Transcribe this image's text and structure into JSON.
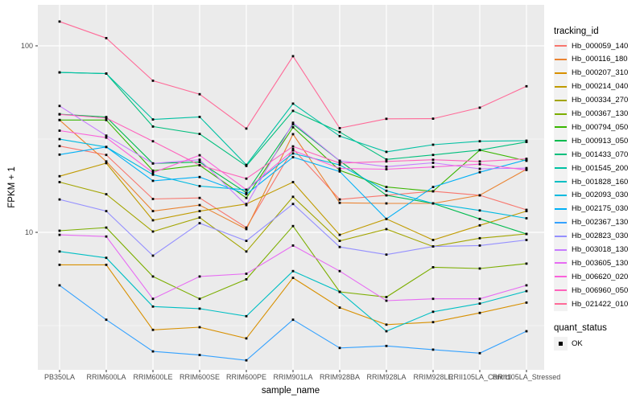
{
  "chart_data": {
    "type": "line",
    "title": "",
    "xlabel": "sample_name",
    "ylabel": "FPKM + 1",
    "yscale": "log10",
    "ylim": [
      1.8,
      170
    ],
    "yticks": [
      100,
      10
    ],
    "ytick_labels": [
      "100",
      "10"
    ],
    "yminor": [
      31.62,
      3.162
    ],
    "grid": "white on gray panel",
    "legend_position": "right",
    "legend_title": "tracking_id",
    "point_marker": "black square",
    "quant_legend": {
      "title": "quant_status",
      "items": [
        {
          "label": "OK"
        }
      ]
    },
    "x": [
      "PB350LA",
      "RRIM600LA",
      "RRIM600LE",
      "RRIM600SE",
      "RRIM600PE",
      "RRIM901LA",
      "RRIM928BA",
      "RRIM928LA",
      "RRIM928LE",
      "RRII105LA_Control",
      "RRII105LA_Stressed"
    ],
    "series": [
      {
        "name": "Hb_000059_140",
        "color": "#F8766D",
        "values": [
          29,
          26,
          15.1,
          15.3,
          10.6,
          28,
          15.0,
          15.8,
          16.6,
          15.8,
          13.2
        ]
      },
      {
        "name": "Hb_000116_180",
        "color": "#EA8331",
        "values": [
          40,
          24,
          13.0,
          14.0,
          10.4,
          33.6,
          14.4,
          14.3,
          14.3,
          15.8,
          21.8
        ]
      },
      {
        "name": "Hb_000207_310",
        "color": "#D89000",
        "values": [
          6.7,
          6.7,
          3.0,
          3.1,
          2.7,
          5.7,
          3.95,
          3.2,
          3.3,
          3.7,
          4.2
        ]
      },
      {
        "name": "Hb_000214_040",
        "color": "#C09B00",
        "values": [
          20,
          23.5,
          11.6,
          13.0,
          14.2,
          18.6,
          9.7,
          11.8,
          9.1,
          10.9,
          13.0
        ]
      },
      {
        "name": "Hb_000334_270",
        "color": "#A3A500",
        "values": [
          18.6,
          16,
          10.1,
          12.0,
          7.9,
          15.5,
          9.0,
          10.4,
          8.4,
          9.3,
          9.8
        ]
      },
      {
        "name": "Hb_000367_130",
        "color": "#7CAE00",
        "values": [
          10.2,
          10.6,
          5.8,
          4.4,
          5.6,
          10.8,
          4.8,
          4.5,
          6.5,
          6.4,
          6.8
        ]
      },
      {
        "name": "Hb_000794_050",
        "color": "#39B600",
        "values": [
          40,
          40,
          21.4,
          22.9,
          15.3,
          36.6,
          21.5,
          17.5,
          16.6,
          27.6,
          24.2
        ]
      },
      {
        "name": "Hb_000913_050",
        "color": "#00BB4E",
        "values": [
          43,
          41.5,
          23.4,
          23.8,
          16.3,
          38.0,
          24.2,
          15.8,
          14.3,
          11.8,
          9.8
        ]
      },
      {
        "name": "Hb_001433_070",
        "color": "#00BF7D",
        "values": [
          72,
          71,
          36.9,
          33.7,
          22.7,
          44.8,
          34.5,
          24.6,
          26.0,
          27.6,
          30.5
        ]
      },
      {
        "name": "Hb_001545_200",
        "color": "#00C1A3",
        "values": [
          72,
          71,
          40.3,
          41.6,
          23.0,
          49.0,
          32.8,
          27.0,
          29.5,
          30.8,
          31.0
        ]
      },
      {
        "name": "Hb_001828_160",
        "color": "#00BFC4",
        "values": [
          7.9,
          7.3,
          4.0,
          3.9,
          3.55,
          6.2,
          4.8,
          2.95,
          3.75,
          4.15,
          4.84
        ]
      },
      {
        "name": "Hb_002093_030",
        "color": "#00BAE0",
        "values": [
          31.6,
          28.7,
          20.4,
          17.7,
          16.9,
          26.5,
          23.0,
          16.7,
          14.3,
          13.1,
          11.9
        ]
      },
      {
        "name": "Hb_002175_030",
        "color": "#00B0F6",
        "values": [
          26.1,
          28.7,
          18.9,
          19.8,
          16.0,
          25.3,
          21.2,
          11.8,
          17.5,
          21.0,
          24.5
        ]
      },
      {
        "name": "Hb_002367_130",
        "color": "#35A2FF",
        "values": [
          5.2,
          3.4,
          2.3,
          2.2,
          2.06,
          3.4,
          2.4,
          2.46,
          2.35,
          2.25,
          2.95
        ]
      },
      {
        "name": "Hb_002823_030",
        "color": "#9590FF",
        "values": [
          15,
          13,
          7.5,
          11.2,
          9.0,
          14.2,
          8.35,
          7.6,
          8.4,
          8.5,
          9.1
        ]
      },
      {
        "name": "Hb_003018_130",
        "color": "#C77CFF",
        "values": [
          47.6,
          33,
          23.4,
          24.5,
          14.0,
          38.7,
          24.2,
          22.5,
          23.6,
          21.9,
          22.1
        ]
      },
      {
        "name": "Hb_003605_130",
        "color": "#E76BF3",
        "values": [
          9.7,
          9.5,
          4.4,
          5.8,
          6.0,
          8.5,
          6.2,
          4.3,
          4.4,
          4.4,
          5.2
        ]
      },
      {
        "name": "Hb_006620_020",
        "color": "#FA62DB",
        "values": [
          35.1,
          32.2,
          20.9,
          25.9,
          16.9,
          27.5,
          22.0,
          21.8,
          22.4,
          23.2,
          21.6
        ]
      },
      {
        "name": "Hb_006960_050",
        "color": "#FF62BC",
        "values": [
          42.9,
          41.0,
          30.8,
          22.9,
          19.4,
          28.9,
          23.5,
          24.0,
          24.5,
          24.0,
          24.8
        ]
      },
      {
        "name": "Hb_021422_010",
        "color": "#FF6A98",
        "values": [
          135,
          110,
          65,
          55,
          36,
          88,
          36.2,
          40.6,
          40.7,
          46.6,
          60.7
        ]
      }
    ],
    "style": {
      "panel_bg": "#EBEBEB",
      "grid_color": "#FFFFFF",
      "tick_text_color": "#4D4D4D",
      "marker_color": "#000000"
    }
  }
}
